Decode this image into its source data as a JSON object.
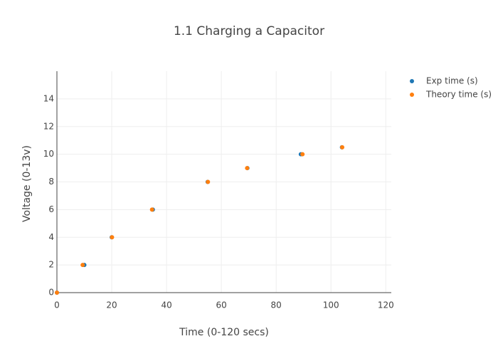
{
  "chart_data": {
    "type": "scatter",
    "title": "1.1  Charging a Capacitor",
    "x_label": "Time (0-120 secs)",
    "y_label": "Voltage (0-13v)",
    "series": [
      {
        "name": "Exp time (s)",
        "color": "#1f77b4",
        "x": [
          0,
          10,
          20,
          35,
          55,
          69.5,
          89,
          104
        ],
        "values": [
          0,
          2,
          4,
          6,
          8,
          9,
          10,
          10.5
        ]
      },
      {
        "name": "Theory time (s)",
        "color": "#ff7f0e",
        "x": [
          0,
          9.4,
          20.1,
          34.7,
          55.1,
          69.4,
          89.6,
          104.1
        ],
        "values": [
          0,
          2,
          4,
          6,
          8,
          9,
          10,
          10.5
        ]
      }
    ],
    "xlim": [
      0,
      122
    ],
    "xticks": [
      0,
      20,
      40,
      60,
      80,
      100,
      120
    ],
    "ylim": [
      0,
      16
    ],
    "yticks": [
      0,
      2,
      4,
      6,
      8,
      10,
      12,
      14
    ],
    "grid": true,
    "legend": "top-right"
  }
}
